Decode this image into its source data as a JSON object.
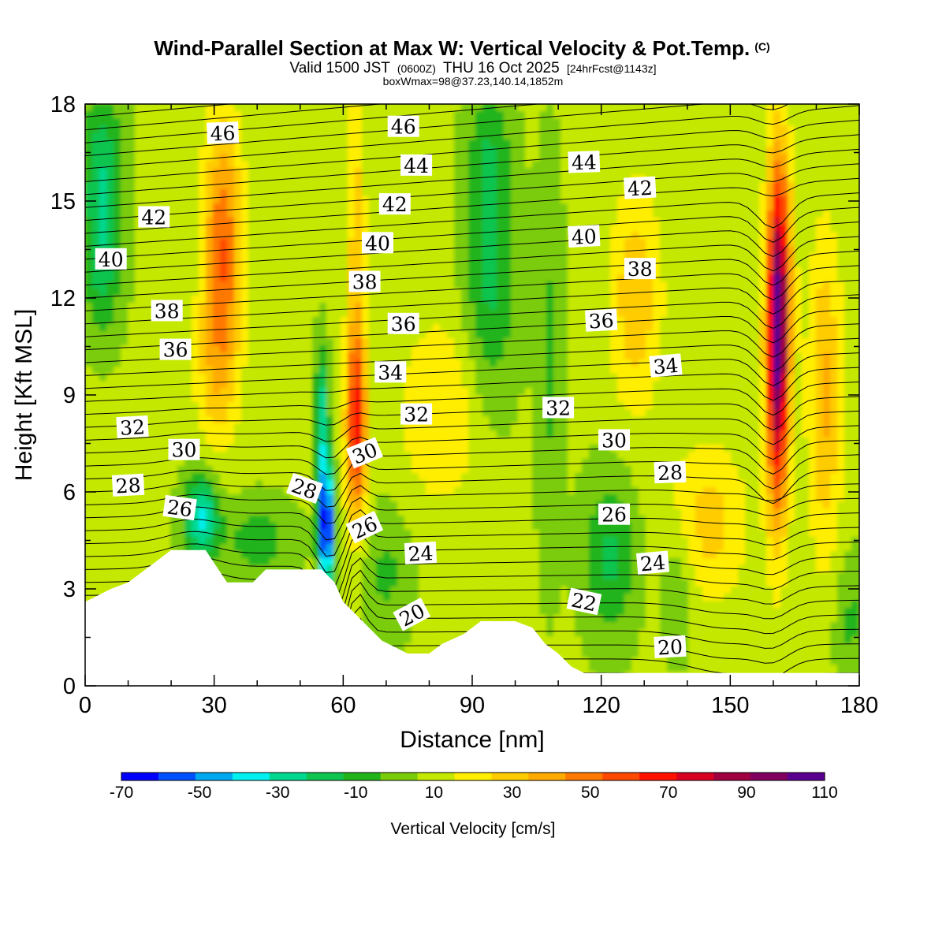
{
  "chart_data": {
    "type": "heatmap",
    "title": "Wind-Parallel Section at Max W: Vertical Velocity & Pot.Temp.",
    "title_mark": "(C)",
    "subtitle_pre": "Valid 1500 JST",
    "subtitle_utc": "(0600Z)",
    "subtitle_mid": "THU 16 Oct 2025",
    "subtitle_fcst": "[24hrFcst@1143z]",
    "subtitle2": "boxWmax=98@37.23,140.14,1852m",
    "xlabel": "Distance [nm]",
    "ylabel": "Height [Kft MSL]",
    "xlim": [
      0,
      180
    ],
    "ylim": [
      0,
      18
    ],
    "x_ticks": [
      0,
      30,
      60,
      90,
      120,
      150,
      180
    ],
    "y_ticks": [
      0,
      3,
      6,
      9,
      12,
      15,
      18
    ],
    "colorbar": {
      "label": "Vertical Velocity [cm/s]",
      "levels": [
        -70,
        -60,
        -50,
        -40,
        -30,
        -20,
        -10,
        0,
        10,
        20,
        30,
        40,
        50,
        60,
        70,
        80,
        90,
        100,
        110
      ],
      "tick_labels": [
        -70,
        -50,
        -30,
        -10,
        10,
        30,
        50,
        70,
        90,
        110
      ],
      "colors": [
        "#0000ff",
        "#0050ff",
        "#00a8f0",
        "#00f0f0",
        "#00d890",
        "#10c450",
        "#22b41a",
        "#7acc0a",
        "#c4e800",
        "#ffee00",
        "#ffcc00",
        "#ffaa00",
        "#ff7800",
        "#ff4800",
        "#ff1000",
        "#d80020",
        "#a00040",
        "#800060",
        "#5a0090"
      ]
    },
    "terrain_kft": [
      [
        0,
        2.6
      ],
      [
        3,
        2.8
      ],
      [
        6,
        3.0
      ],
      [
        10,
        3.2
      ],
      [
        13,
        3.5
      ],
      [
        16,
        3.8
      ],
      [
        20,
        4.2
      ],
      [
        28,
        4.2
      ],
      [
        30,
        3.8
      ],
      [
        33,
        3.2
      ],
      [
        39,
        3.2
      ],
      [
        42,
        3.6
      ],
      [
        55,
        3.6
      ],
      [
        58,
        3.2
      ],
      [
        60,
        2.6
      ],
      [
        63,
        2.2
      ],
      [
        66,
        1.8
      ],
      [
        69,
        1.4
      ],
      [
        72,
        1.2
      ],
      [
        75,
        1.0
      ],
      [
        80,
        1.0
      ],
      [
        83,
        1.3
      ],
      [
        88,
        1.6
      ],
      [
        92,
        2.0
      ],
      [
        100,
        2.0
      ],
      [
        104,
        1.8
      ],
      [
        107,
        1.3
      ],
      [
        110,
        1.0
      ],
      [
        113,
        0.6
      ],
      [
        116,
        0.4
      ],
      [
        180,
        0.4
      ]
    ],
    "theta_contour_labels": [
      {
        "value": "46",
        "x": 32,
        "y": 17.1,
        "rot": -2
      },
      {
        "value": "46",
        "x": 74,
        "y": 17.3,
        "rot": 0
      },
      {
        "value": "44",
        "x": 77,
        "y": 16.1,
        "rot": 0
      },
      {
        "value": "44",
        "x": 116,
        "y": 16.2,
        "rot": -2
      },
      {
        "value": "42",
        "x": 16,
        "y": 14.5,
        "rot": 0
      },
      {
        "value": "42",
        "x": 72,
        "y": 14.9,
        "rot": 0
      },
      {
        "value": "42",
        "x": 129,
        "y": 15.4,
        "rot": -3
      },
      {
        "value": "40",
        "x": 6,
        "y": 13.2,
        "rot": 0
      },
      {
        "value": "40",
        "x": 68,
        "y": 13.7,
        "rot": 0
      },
      {
        "value": "40",
        "x": 116,
        "y": 13.9,
        "rot": -3
      },
      {
        "value": "38",
        "x": 19,
        "y": 11.6,
        "rot": 0
      },
      {
        "value": "38",
        "x": 65,
        "y": 12.5,
        "rot": 0
      },
      {
        "value": "38",
        "x": 129,
        "y": 12.9,
        "rot": 0
      },
      {
        "value": "36",
        "x": 21,
        "y": 10.4,
        "rot": 0
      },
      {
        "value": "36",
        "x": 74,
        "y": 11.2,
        "rot": 0
      },
      {
        "value": "36",
        "x": 120,
        "y": 11.3,
        "rot": -3
      },
      {
        "value": "34",
        "x": 71,
        "y": 9.7,
        "rot": 0
      },
      {
        "value": "34",
        "x": 135,
        "y": 9.9,
        "rot": -5
      },
      {
        "value": "32",
        "x": 11,
        "y": 8.0,
        "rot": -3
      },
      {
        "value": "32",
        "x": 77,
        "y": 8.4,
        "rot": 0
      },
      {
        "value": "32",
        "x": 110,
        "y": 8.6,
        "rot": 0
      },
      {
        "value": "30",
        "x": 23,
        "y": 7.3,
        "rot": 0
      },
      {
        "value": "30",
        "x": 65,
        "y": 7.2,
        "rot": -22
      },
      {
        "value": "30",
        "x": 123,
        "y": 7.6,
        "rot": 0
      },
      {
        "value": "28",
        "x": 10,
        "y": 6.2,
        "rot": -3
      },
      {
        "value": "28",
        "x": 51,
        "y": 6.1,
        "rot": 20
      },
      {
        "value": "28",
        "x": 136,
        "y": 6.6,
        "rot": -2
      },
      {
        "value": "26",
        "x": 22,
        "y": 5.5,
        "rot": 8
      },
      {
        "value": "26",
        "x": 65,
        "y": 4.9,
        "rot": -25
      },
      {
        "value": "26",
        "x": 123,
        "y": 5.3,
        "rot": 0
      },
      {
        "value": "24",
        "x": 78,
        "y": 4.1,
        "rot": -3
      },
      {
        "value": "24",
        "x": 132,
        "y": 3.8,
        "rot": -5
      },
      {
        "value": "22",
        "x": 116,
        "y": 2.6,
        "rot": 12
      },
      {
        "value": "20",
        "x": 76,
        "y": 2.2,
        "rot": -28
      },
      {
        "value": "20",
        "x": 136,
        "y": 1.2,
        "rot": -3
      }
    ],
    "w_features_cm_s": [
      {
        "label": "updraft core",
        "x": 161,
        "y": 10.5,
        "w": 110
      },
      {
        "label": "updraft",
        "x": 63,
        "y": 8.0,
        "w": 70
      },
      {
        "label": "updraft",
        "x": 32,
        "y": 13.5,
        "w": 60
      },
      {
        "label": "updraft",
        "x": 172,
        "y": 9.0,
        "w": 40
      },
      {
        "label": "updraft",
        "x": 128,
        "y": 12.0,
        "w": 40
      },
      {
        "label": "downdraft core",
        "x": 56,
        "y": 5.0,
        "w": -70
      },
      {
        "label": "downdraft",
        "x": 27,
        "y": 5.2,
        "w": -30
      },
      {
        "label": "sinking area",
        "x": 94,
        "y": 12.5,
        "w": -10
      },
      {
        "label": "sinking area",
        "x": 4,
        "y": 15.5,
        "w": -20
      }
    ]
  }
}
